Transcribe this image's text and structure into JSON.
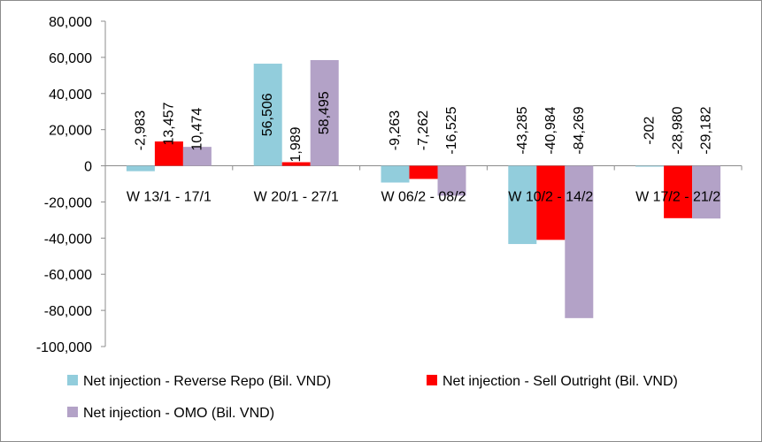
{
  "chart_data": {
    "type": "bar",
    "title": "",
    "xlabel": "",
    "ylabel": "",
    "ylim": [
      -100000,
      80000
    ],
    "ytick_step": 20000,
    "ytick_labels": [
      "80,000",
      "60,000",
      "40,000",
      "20,000",
      "0",
      "-20,000",
      "-40,000",
      "-60,000",
      "-80,000",
      "-100,000"
    ],
    "categories": [
      "W 13/1 - 17/1",
      "W 20/1 - 27/1",
      "W 06/2 - 08/2",
      "W 10/2 - 14/2",
      "W 17/2 - 21/2"
    ],
    "series": [
      {
        "name": "Net injection - Reverse Repo (Bil. VND)",
        "color": "#92cddc",
        "values": [
          -2983,
          56506,
          -9263,
          -43285,
          -202
        ],
        "labels": [
          "-2,983",
          "56,506",
          "-9,263",
          "-43,285",
          "-202"
        ]
      },
      {
        "name": "Net injection - Sell Outright (Bil. VND)",
        "color": "#ff0000",
        "values": [
          13457,
          1989,
          -7262,
          -40984,
          -28980
        ],
        "labels": [
          "13,457",
          "1,989",
          "-7,262",
          "-40,984",
          "-28,980"
        ]
      },
      {
        "name": "Net injection - OMO (Bil. VND)",
        "color": "#b3a2c7",
        "values": [
          10474,
          58495,
          -16525,
          -84269,
          -29182
        ],
        "labels": [
          "10,474",
          "58,495",
          "-16,525",
          "-84,269",
          "-29,182"
        ]
      }
    ],
    "grid": false,
    "legend_position": "bottom"
  }
}
